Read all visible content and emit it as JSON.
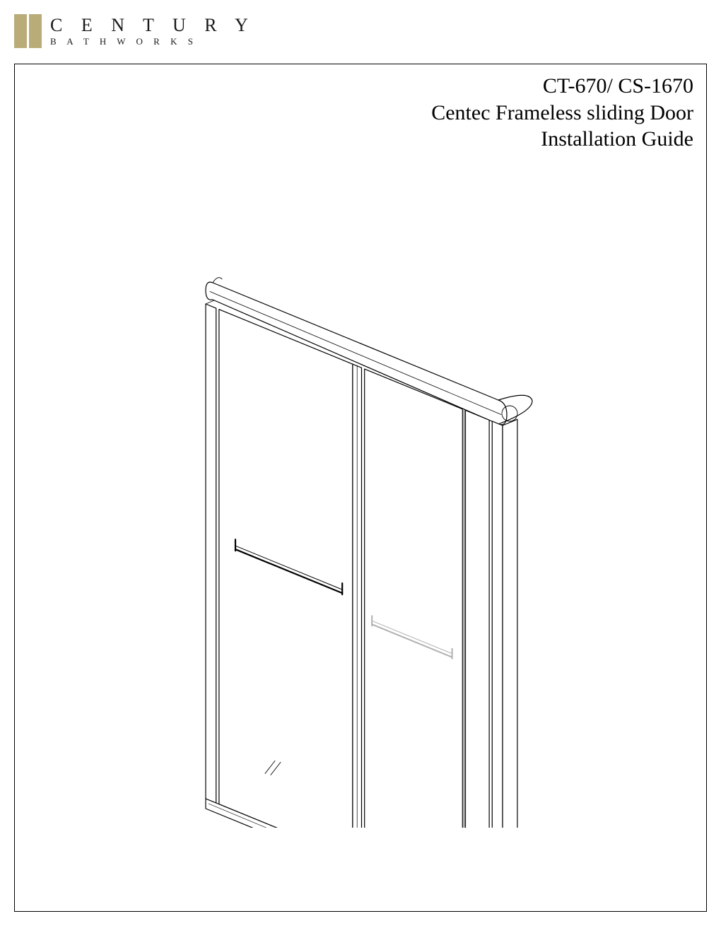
{
  "brand": {
    "main": "C E N T U R Y",
    "sub": "B A T H W O R K S",
    "bar_color": "#b9ac79"
  },
  "title": {
    "line1": "CT-670/ CS-1670",
    "line2": "Centec Frameless sliding Door",
    "line3": "Installation Guide"
  },
  "page": {
    "border_color": "#000000",
    "background": "#ffffff"
  },
  "diagram": {
    "stroke": "#000000",
    "stroke_light": "#b0b0b0",
    "stroke_width": 1.2,
    "stroke_width_light": 1.0
  }
}
